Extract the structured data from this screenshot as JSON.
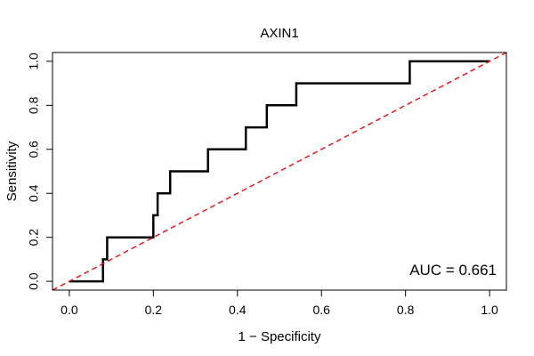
{
  "chart_data": {
    "type": "line",
    "title": "AXIN1",
    "xlabel": "1 − Specificity",
    "ylabel": "Sensitivity",
    "xlim": [
      -0.04,
      1.04
    ],
    "ylim": [
      -0.04,
      1.04
    ],
    "x_ticks": [
      0.0,
      0.2,
      0.4,
      0.6,
      0.8,
      1.0
    ],
    "x_tick_labels": [
      "0.0",
      "0.2",
      "0.4",
      "0.6",
      "0.8",
      "1.0"
    ],
    "y_ticks": [
      0.0,
      0.2,
      0.4,
      0.6,
      0.8,
      1.0
    ],
    "y_tick_labels": [
      "0.0",
      "0.2",
      "0.4",
      "0.6",
      "0.8",
      "1.0"
    ],
    "grid": false,
    "series": [
      {
        "style": "step",
        "color": "#000000",
        "x": [
          0.0,
          0.08,
          0.08,
          0.09,
          0.09,
          0.2,
          0.2,
          0.21,
          0.21,
          0.24,
          0.24,
          0.33,
          0.33,
          0.42,
          0.42,
          0.47,
          0.47,
          0.54,
          0.54,
          0.81,
          0.81,
          1.0
        ],
        "y": [
          0.0,
          0.0,
          0.1,
          0.1,
          0.2,
          0.2,
          0.3,
          0.3,
          0.4,
          0.4,
          0.5,
          0.5,
          0.6,
          0.6,
          0.7,
          0.7,
          0.8,
          0.8,
          0.9,
          0.9,
          1.0,
          1.0
        ]
      },
      {
        "style": "dashed",
        "color": "#e41a1c",
        "x": [
          -0.04,
          1.04
        ],
        "y": [
          -0.04,
          1.04
        ]
      }
    ],
    "annotations": [
      {
        "text": "AUC = 0.661",
        "position": "bottom-right"
      }
    ]
  }
}
